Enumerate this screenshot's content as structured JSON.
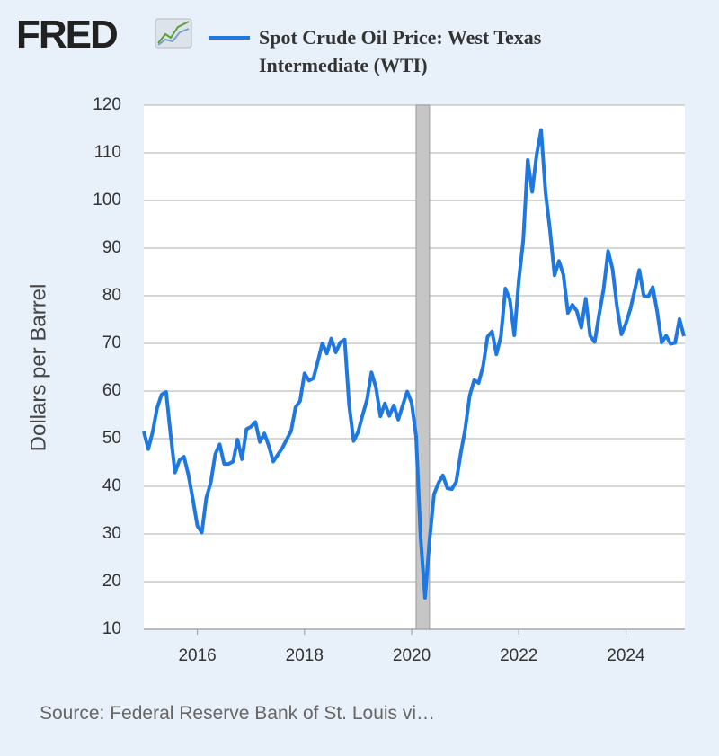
{
  "logo": "FRED",
  "chart_data": {
    "type": "line",
    "y_label": "Dollars per Barrel",
    "source": "Source: Federal Reserve Bank of St. Louis vi…",
    "x": [
      2015,
      2015.083,
      2015.167,
      2015.25,
      2015.333,
      2015.417,
      2015.5,
      2015.583,
      2015.667,
      2015.75,
      2015.833,
      2015.917,
      2016,
      2016.083,
      2016.167,
      2016.25,
      2016.333,
      2016.417,
      2016.5,
      2016.583,
      2016.667,
      2016.75,
      2016.833,
      2016.917,
      2017,
      2017.083,
      2017.167,
      2017.25,
      2017.333,
      2017.417,
      2017.5,
      2017.583,
      2017.667,
      2017.75,
      2017.833,
      2017.917,
      2018,
      2018.083,
      2018.167,
      2018.25,
      2018.333,
      2018.417,
      2018.5,
      2018.583,
      2018.667,
      2018.75,
      2018.833,
      2018.917,
      2019,
      2019.083,
      2019.167,
      2019.25,
      2019.333,
      2019.417,
      2019.5,
      2019.583,
      2019.667,
      2019.75,
      2019.833,
      2019.917,
      2020,
      2020.083,
      2020.167,
      2020.25,
      2020.333,
      2020.417,
      2020.5,
      2020.583,
      2020.667,
      2020.75,
      2020.833,
      2020.917,
      2021,
      2021.083,
      2021.167,
      2021.25,
      2021.333,
      2021.417,
      2021.5,
      2021.583,
      2021.667,
      2021.75,
      2021.833,
      2021.917,
      2022,
      2022.083,
      2022.167,
      2022.25,
      2022.333,
      2022.417,
      2022.5,
      2022.583,
      2022.667,
      2022.75,
      2022.833,
      2022.917,
      2023,
      2023.083,
      2023.167,
      2023.25,
      2023.333,
      2023.417,
      2023.5,
      2023.583,
      2023.667,
      2023.75,
      2023.833,
      2023.917,
      2024,
      2024.083,
      2024.167,
      2024.25,
      2024.333,
      2024.417,
      2024.5,
      2024.583,
      2024.667,
      2024.75,
      2024.833,
      2024.917,
      2025,
      2025.083
    ],
    "series": [
      {
        "name": "Spot Crude Oil Price: West Texas Intermediate (WTI)",
        "color": "#1f78e0",
        "values": [
          51.5,
          47.8,
          51.5,
          56.5,
          59.3,
          59.8,
          50.9,
          42.9,
          45.5,
          46.2,
          42.4,
          37.2,
          31.7,
          30.3,
          37.6,
          40.8,
          46.7,
          48.8,
          44.7,
          44.7,
          45.2,
          49.8,
          45.7,
          52.0,
          52.5,
          53.5,
          49.3,
          51.1,
          48.5,
          45.2,
          46.6,
          48.0,
          49.8,
          51.6,
          56.6,
          57.9,
          63.7,
          62.2,
          62.7,
          66.3,
          70.0,
          67.9,
          71.0,
          68.1,
          70.2,
          70.8,
          57.0,
          49.5,
          51.4,
          54.9,
          58.2,
          63.9,
          60.8,
          54.7,
          57.4,
          54.8,
          57.0,
          54.0,
          57.0,
          59.9,
          57.5,
          50.5,
          29.2,
          16.6,
          28.6,
          38.3,
          40.7,
          42.3,
          39.6,
          39.4,
          41.0,
          47.0,
          52.0,
          59.0,
          62.3,
          61.7,
          65.2,
          71.4,
          72.5,
          67.7,
          71.6,
          81.5,
          79.2,
          71.7,
          83.2,
          91.6,
          108.5,
          101.8,
          109.6,
          114.8,
          101.6,
          93.7,
          84.3,
          87.3,
          84.4,
          76.4,
          78.1,
          76.8,
          73.3,
          79.4,
          71.6,
          70.3,
          76.1,
          81.4,
          89.4,
          85.6,
          77.7,
          71.9,
          74.2,
          77.2,
          81.3,
          85.4,
          80.0,
          79.8,
          81.8,
          76.7,
          70.2,
          71.6,
          69.9,
          70.1,
          75.1,
          71.5
        ]
      }
    ],
    "shaded_periods": [
      [
        2020.083,
        2020.333
      ]
    ],
    "xlim": [
      2015,
      2025.1
    ],
    "xticks": [
      2016,
      2018,
      2020,
      2022,
      2024
    ],
    "ylim": [
      10,
      120
    ],
    "yticks": [
      10,
      20,
      30,
      40,
      50,
      60,
      70,
      80,
      90,
      100,
      110,
      120
    ],
    "grid": true
  }
}
